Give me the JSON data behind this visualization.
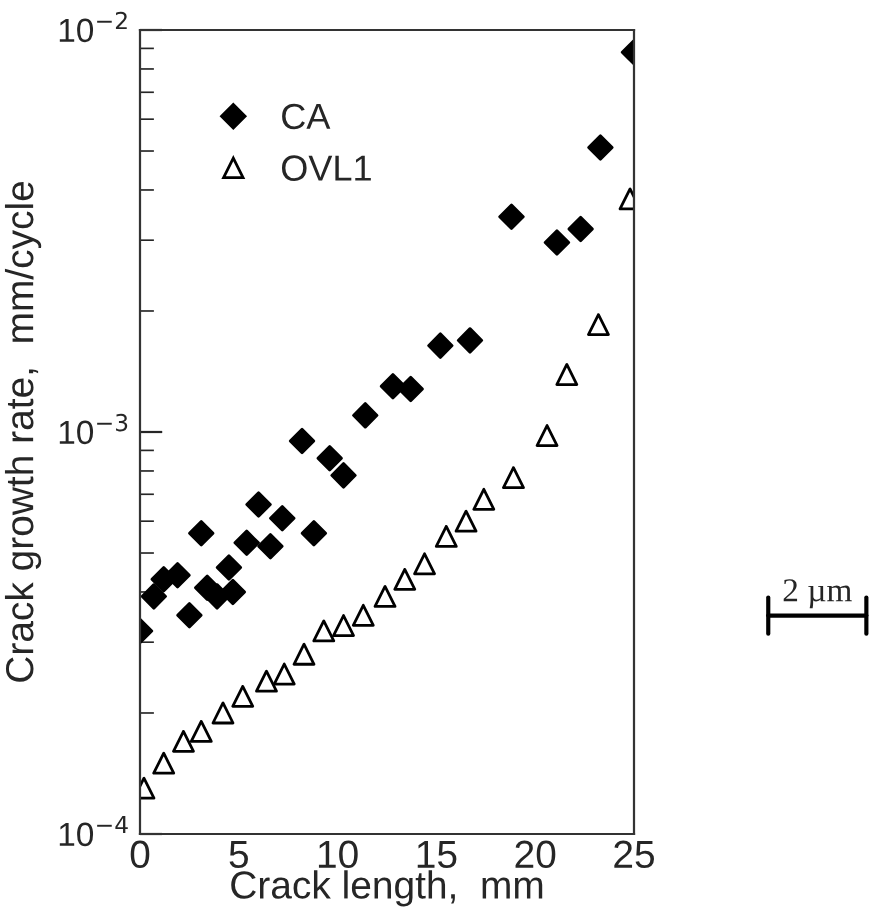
{
  "chart_data": {
    "type": "scatter",
    "xlabel": "Crack length,  mm",
    "ylabel": "Crack growth rate,  mm/cycle",
    "log": "y",
    "xlim": [
      0,
      25
    ],
    "xticks": [
      0,
      5,
      10,
      15,
      20,
      25
    ],
    "ylim": [
      0.0001,
      0.01
    ],
    "yticks": [
      {
        "value": 0.0001,
        "label": "10$^{−4}$"
      },
      {
        "value": 0.001,
        "label": "10$^{−3}$"
      },
      {
        "value": 0.01,
        "label": "10$^{−2}$"
      }
    ],
    "grid": false,
    "legend": "top left",
    "annotations": [
      "2 µm"
    ],
    "series": [
      {
        "name": "CA",
        "color": "#000000",
        "marker": "diamond",
        "x": [
          0,
          0.7,
          1.2,
          1.9,
          2.5,
          3.1,
          3.4,
          3.9,
          4.5,
          4.7,
          5.4,
          6.0,
          6.6,
          7.2,
          8.2,
          8.8,
          9.6,
          10.3,
          11.4,
          12.8,
          13.7,
          15.2,
          16.7,
          18.8,
          21.1,
          22.3,
          23.3,
          25
        ],
        "values": [
          0.00032,
          0.00039,
          0.00043,
          0.00044,
          0.00035,
          0.00056,
          0.00041,
          0.00039,
          0.00046,
          0.0004,
          0.00053,
          0.00066,
          0.00052,
          0.00061,
          0.00095,
          0.00056,
          0.00086,
          0.00078,
          0.0011,
          0.0013,
          0.00128,
          0.00164,
          0.00169,
          0.00343,
          0.00296,
          0.0032,
          0.0051,
          0.0088
        ]
      },
      {
        "name": "OVL1",
        "color": "#000000",
        "marker": "triangle",
        "x": [
          0.2,
          1.2,
          2.2,
          3.1,
          4.2,
          5.2,
          6.4,
          7.3,
          8.3,
          9.3,
          10.3,
          11.3,
          12.4,
          13.4,
          14.4,
          15.5,
          16.5,
          17.4,
          18.9,
          20.6,
          21.6,
          23.2,
          24.8
        ],
        "values": [
          0.00013,
          0.00015,
          0.00017,
          0.00018,
          0.0002,
          0.00022,
          0.00024,
          0.00025,
          0.00028,
          0.00032,
          0.00033,
          0.00035,
          0.00039,
          0.00043,
          0.00047,
          0.00055,
          0.0006,
          0.00068,
          0.00077,
          0.00098,
          0.00139,
          0.00185,
          0.0038
        ]
      }
    ]
  }
}
